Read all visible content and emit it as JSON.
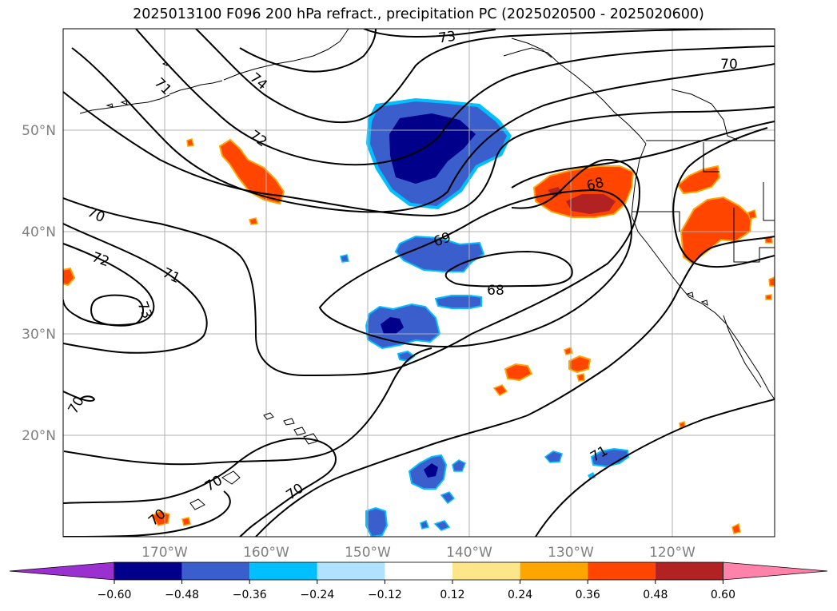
{
  "title": "2025013100 F096 200 hPa refract., precipitation PC (2025020500 - 2025020600)",
  "map": {
    "lon_labels": [
      "170°W",
      "160°W",
      "150°W",
      "140°W",
      "130°W",
      "120°W"
    ],
    "lat_labels": [
      "50°N",
      "40°N",
      "30°N",
      "20°N"
    ],
    "contour_labels": [
      "73",
      "70",
      "71",
      "74",
      "72",
      "70",
      "72",
      "71",
      "73",
      "69",
      "68",
      "68",
      "71",
      "70",
      "70",
      "70",
      "70"
    ]
  },
  "colorbar": {
    "colors": [
      "#9b30d0",
      "#00008b",
      "#3a5fcd",
      "#00bfff",
      "#b0e2ff",
      "#ffffff",
      "#fde68a",
      "#ffa500",
      "#ff4500",
      "#b22222",
      "#ff82ab"
    ],
    "tick_labels": [
      "−0.60",
      "−0.48",
      "−0.36",
      "−0.24",
      "−0.12",
      "0.12",
      "0.24",
      "0.36",
      "0.48",
      "0.60"
    ]
  }
}
